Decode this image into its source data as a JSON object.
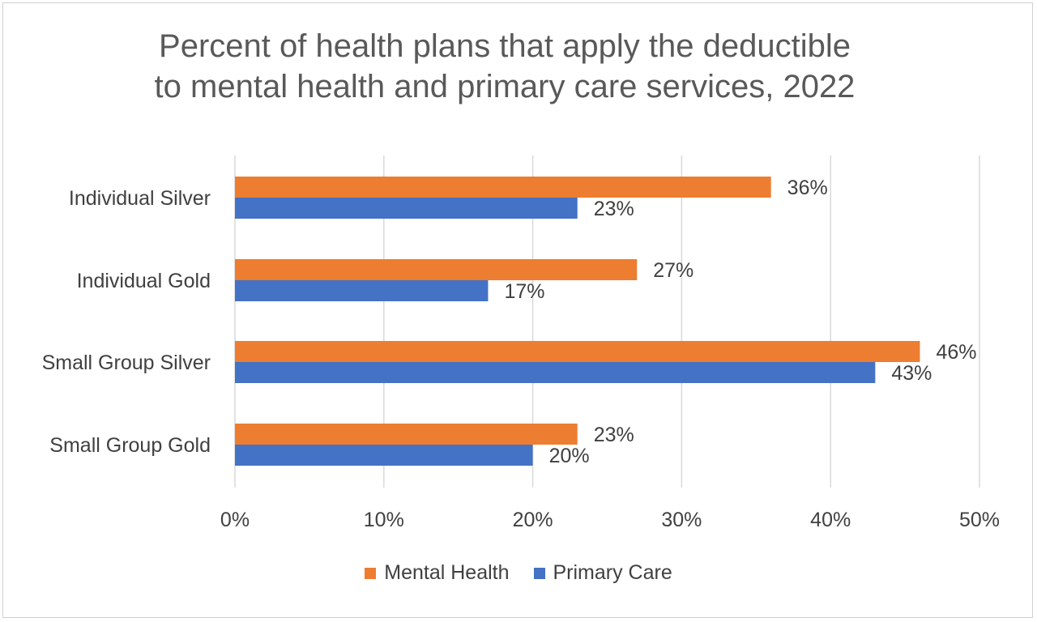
{
  "chart_data": {
    "type": "bar",
    "orientation": "horizontal",
    "title": "Percent of health plans that apply the deductible to mental health and primary care services, 2022",
    "title_lines": [
      "Percent of health plans that apply the deductible",
      "to mental health and primary care services, 2022"
    ],
    "categories": [
      "Individual Silver",
      "Individual Gold",
      "Small Group Silver",
      "Small Group Gold"
    ],
    "series": [
      {
        "name": "Mental Health",
        "color": "#ED7D31",
        "values": [
          36,
          27,
          46,
          23
        ],
        "labels": [
          "36%",
          "27%",
          "46%",
          "23%"
        ]
      },
      {
        "name": "Primary Care",
        "color": "#4472C4",
        "values": [
          23,
          17,
          43,
          20
        ],
        "labels": [
          "23%",
          "17%",
          "43%",
          "20%"
        ]
      }
    ],
    "xlim": [
      0,
      50
    ],
    "xticks": [
      0,
      10,
      20,
      30,
      40,
      50
    ],
    "xtick_labels": [
      "0%",
      "10%",
      "20%",
      "30%",
      "40%",
      "50%"
    ],
    "grid": true,
    "legend_position": "bottom"
  }
}
